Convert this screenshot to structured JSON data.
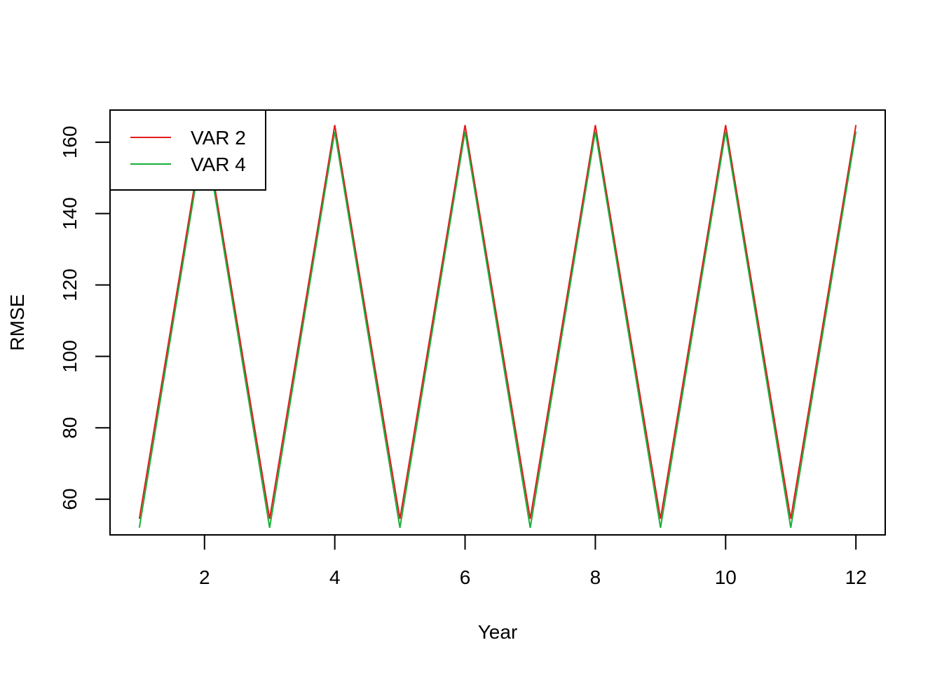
{
  "chart_data": {
    "type": "line",
    "title": "",
    "xlabel": "Year",
    "ylabel": "RMSE",
    "xlim": [
      0.55,
      12.45
    ],
    "ylim": [
      50,
      169
    ],
    "x_ticks": [
      2,
      4,
      6,
      8,
      10,
      12
    ],
    "y_ticks": [
      60,
      80,
      100,
      120,
      140,
      160
    ],
    "grid": false,
    "legend": {
      "position": "top-left"
    },
    "x": [
      1,
      2,
      3,
      4,
      5,
      6,
      7,
      8,
      9,
      10,
      11,
      12
    ],
    "series": [
      {
        "name": "VAR 2",
        "color": "#E41A1C",
        "values": [
          54.5,
          164.8,
          54.5,
          164.8,
          54.5,
          164.8,
          54.5,
          164.8,
          54.5,
          164.8,
          54.5,
          164.8
        ]
      },
      {
        "name": "VAR 4",
        "color": "#1AAF3A",
        "values": [
          52.0,
          163.0,
          52.0,
          163.0,
          52.0,
          163.0,
          52.0,
          163.0,
          52.0,
          163.0,
          52.0,
          163.0
        ]
      }
    ]
  }
}
